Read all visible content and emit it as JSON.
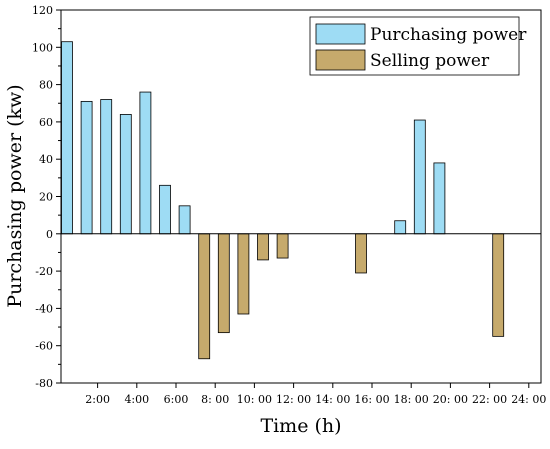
{
  "chart_data": {
    "type": "bar",
    "xlabel": "Time (h)",
    "ylabel": "Purchasing power (kw)",
    "ylim": [
      -80,
      120
    ],
    "yticks": [
      -80,
      -60,
      -40,
      -20,
      0,
      20,
      40,
      60,
      80,
      100,
      120
    ],
    "x_tick_labels": [
      "2:00",
      "4:00",
      "6:00",
      "8: 00",
      "10: 00",
      "12: 00",
      "14: 00",
      "16: 00",
      "18: 00",
      "20: 00",
      "22: 00",
      "24: 00"
    ],
    "hours": [
      1,
      2,
      3,
      4,
      5,
      6,
      7,
      8,
      9,
      10,
      11,
      12,
      13,
      14,
      15,
      16,
      17,
      18,
      19,
      20,
      21,
      22,
      23,
      24
    ],
    "legend_position": "top-right",
    "series": [
      {
        "name": "Purchasing power",
        "color": "#9edcf4",
        "values": [
          103,
          71,
          72,
          64,
          76,
          26,
          15,
          0,
          0,
          0,
          0,
          0,
          0,
          0,
          0,
          0,
          0,
          7,
          61,
          38,
          0,
          0,
          0,
          0
        ]
      },
      {
        "name": "Selling power",
        "color": "#c6aa6c",
        "values": [
          0,
          0,
          0,
          0,
          0,
          0,
          0,
          -67,
          -53,
          -43,
          -14,
          -13,
          0,
          0,
          0,
          -21,
          0,
          0,
          0,
          0,
          0,
          0,
          -55,
          0
        ]
      }
    ]
  }
}
